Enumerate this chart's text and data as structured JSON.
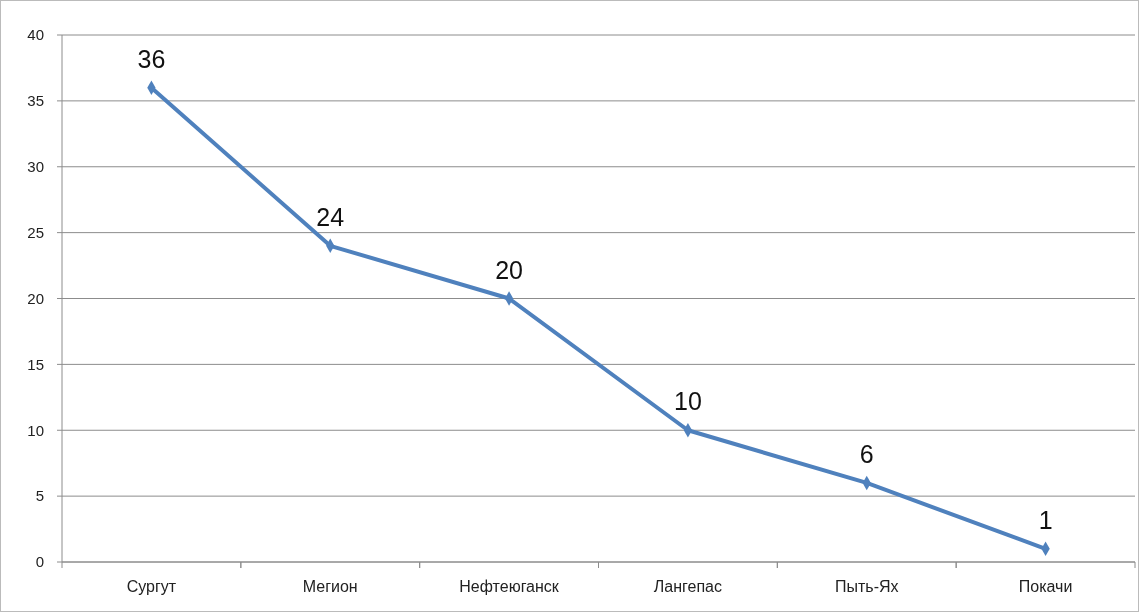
{
  "chart_data": {
    "type": "line",
    "categories": [
      "Сургут",
      "Мегион",
      "Нефтеюганск",
      "Лангепас",
      "Пыть-Ях",
      "Покачи"
    ],
    "series": [
      {
        "color": "#4f81bd",
        "values": [
          36,
          24,
          20,
          10,
          6,
          1
        ]
      }
    ],
    "ylim": [
      0,
      40
    ],
    "yticks": [
      0,
      5,
      10,
      15,
      20,
      25,
      30,
      35,
      40
    ],
    "grid": "y",
    "marker": "diamond",
    "line_style": "solid",
    "data_labels": true
  }
}
